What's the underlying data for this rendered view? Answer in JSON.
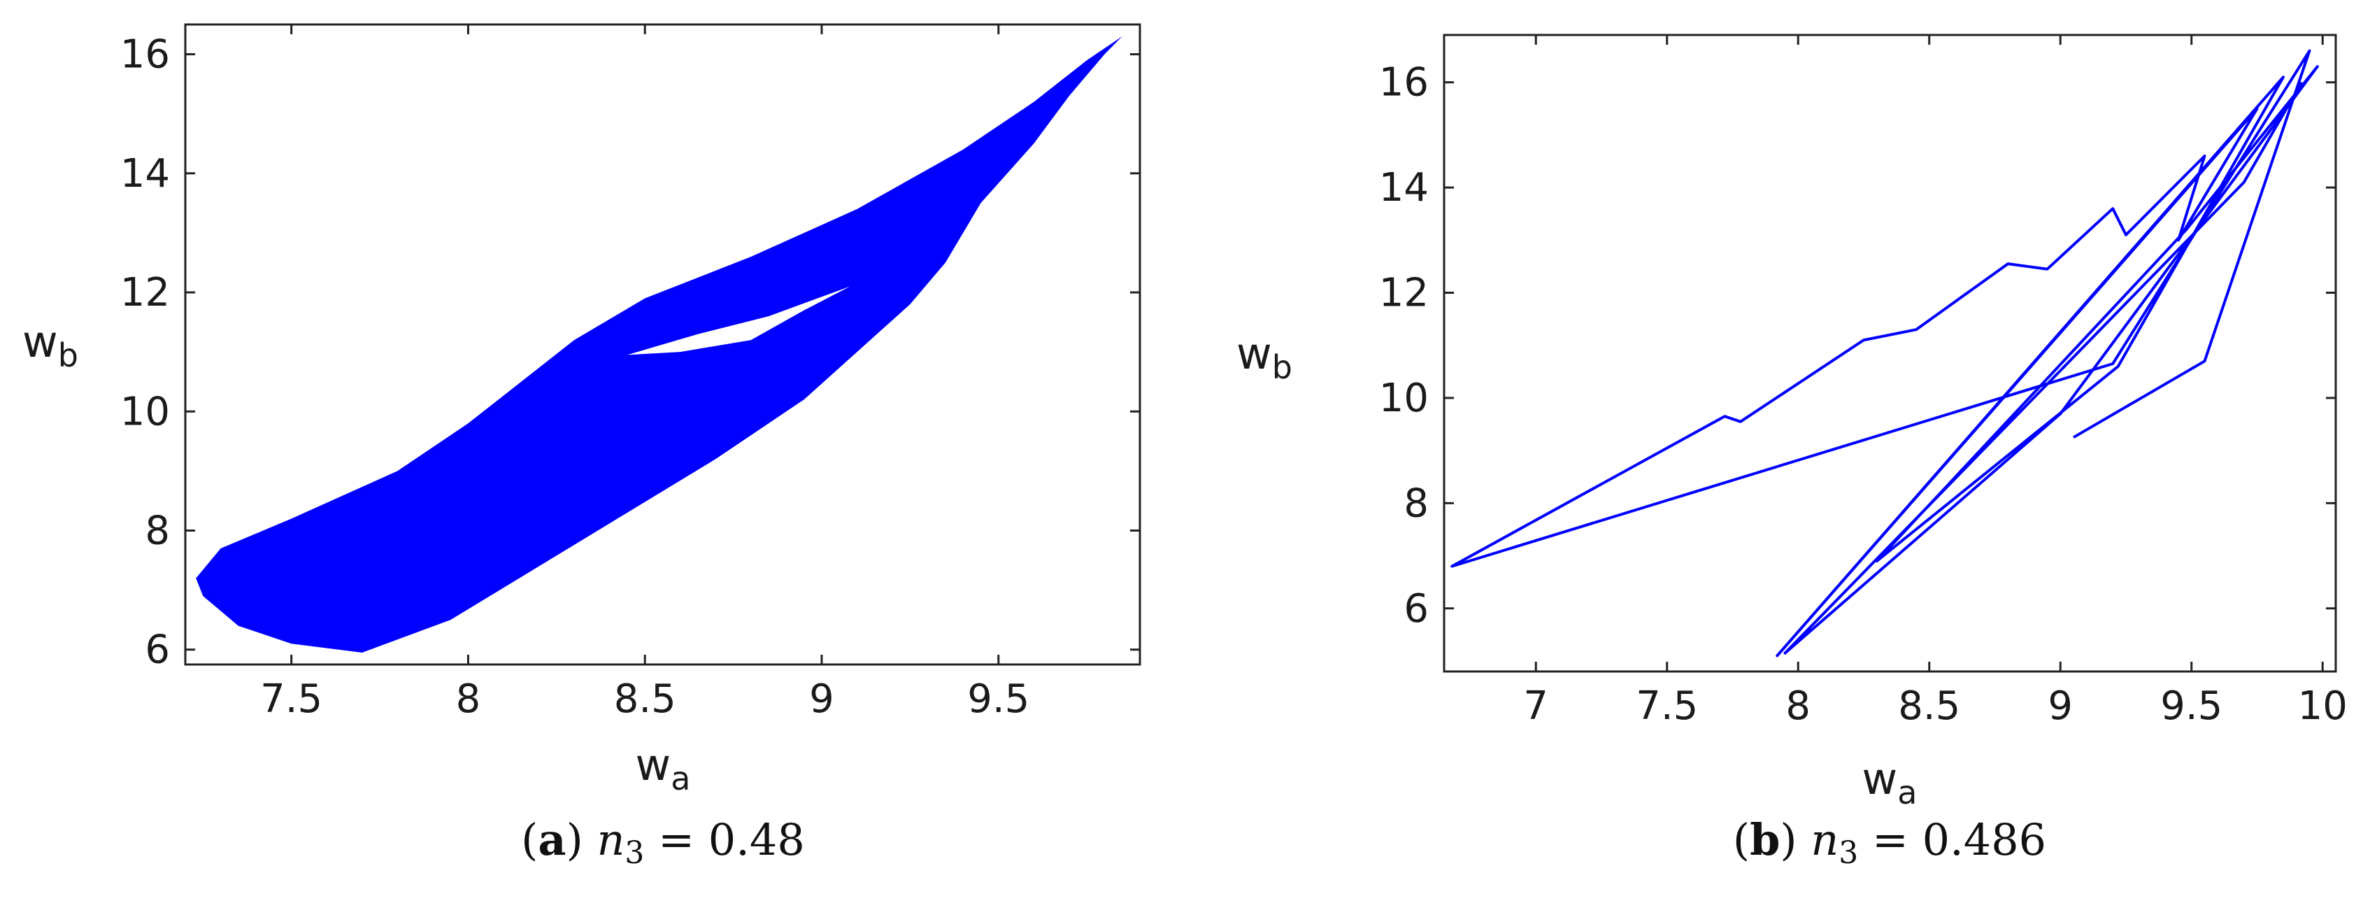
{
  "chart_data": [
    {
      "type": "scatter",
      "panel_label": "a",
      "caption_var": "n",
      "caption_sub": "3",
      "caption_eq": " = 0.48",
      "xlabel": "w",
      "xlabel_sub": "a",
      "ylabel": "w",
      "ylabel_sub": "b",
      "xlim": [
        7.2,
        9.9
      ],
      "ylim": [
        5.75,
        16.5
      ],
      "xticks": [
        7.5,
        8,
        8.5,
        9,
        9.5
      ],
      "xtick_labels": [
        "7.5",
        "8",
        "8.5",
        "9",
        "9.5"
      ],
      "yticks": [
        6,
        8,
        10,
        12,
        14,
        16
      ],
      "ytick_labels": [
        "6",
        "8",
        "10",
        "12",
        "14",
        "16"
      ],
      "grid": false,
      "series_color": "#0000ff",
      "region_outer": [
        [
          9.85,
          16.3
        ],
        [
          9.8,
          16.0
        ],
        [
          9.7,
          15.3
        ],
        [
          9.6,
          14.5
        ],
        [
          9.45,
          13.5
        ],
        [
          9.35,
          12.5
        ],
        [
          9.25,
          11.8
        ],
        [
          9.1,
          11.0
        ],
        [
          8.95,
          10.2
        ],
        [
          8.7,
          9.2
        ],
        [
          8.45,
          8.3
        ],
        [
          8.2,
          7.4
        ],
        [
          7.95,
          6.5
        ],
        [
          7.7,
          5.95
        ],
        [
          7.5,
          6.1
        ],
        [
          7.35,
          6.4
        ],
        [
          7.25,
          6.9
        ],
        [
          7.23,
          7.2
        ],
        [
          7.3,
          7.7
        ],
        [
          7.5,
          8.2
        ],
        [
          7.8,
          9.0
        ],
        [
          8.0,
          9.8
        ],
        [
          8.15,
          10.5
        ],
        [
          8.3,
          11.2
        ],
        [
          8.5,
          11.9
        ],
        [
          8.8,
          12.6
        ],
        [
          9.1,
          13.4
        ],
        [
          9.4,
          14.4
        ],
        [
          9.6,
          15.2
        ],
        [
          9.75,
          15.9
        ],
        [
          9.85,
          16.3
        ]
      ],
      "region_hole": [
        [
          8.45,
          10.95
        ],
        [
          8.65,
          11.3
        ],
        [
          8.85,
          11.6
        ],
        [
          9.08,
          12.1
        ],
        [
          8.95,
          11.7
        ],
        [
          8.8,
          11.2
        ],
        [
          8.6,
          11.0
        ],
        [
          8.45,
          10.95
        ]
      ]
    },
    {
      "type": "line",
      "panel_label": "b",
      "caption_var": "n",
      "caption_sub": "3",
      "caption_eq": " = 0.486",
      "xlabel": "w",
      "xlabel_sub": "a",
      "ylabel": "w",
      "ylabel_sub": "b",
      "xlim": [
        6.65,
        10.05
      ],
      "ylim": [
        4.8,
        16.9
      ],
      "xticks": [
        7,
        7.5,
        8,
        8.5,
        9,
        9.5,
        10
      ],
      "xtick_labels": [
        "7",
        "7.5",
        "8",
        "8.5",
        "9",
        "9.5",
        "10"
      ],
      "yticks": [
        6,
        8,
        10,
        12,
        14,
        16
      ],
      "ytick_labels": [
        "6",
        "8",
        "10",
        "12",
        "14",
        "16"
      ],
      "grid": false,
      "series_color": "#0000ff",
      "x": [
        9.05,
        9.55,
        9.95,
        9.2,
        6.68,
        7.72,
        7.78,
        8.25,
        8.45,
        8.8,
        8.95,
        9.2,
        9.25,
        9.55,
        9.45,
        9.75,
        7.92,
        9.85,
        9.22,
        8.3,
        9.48,
        9.98,
        9.0,
        7.95,
        9.7,
        9.92
      ],
      "y": [
        9.25,
        10.7,
        16.6,
        10.65,
        6.8,
        9.65,
        9.55,
        11.1,
        11.3,
        12.55,
        12.45,
        13.6,
        13.1,
        14.6,
        13.0,
        15.5,
        5.1,
        16.1,
        10.6,
        6.9,
        13.2,
        16.3,
        9.7,
        5.15,
        14.1,
        16.0
      ]
    }
  ]
}
